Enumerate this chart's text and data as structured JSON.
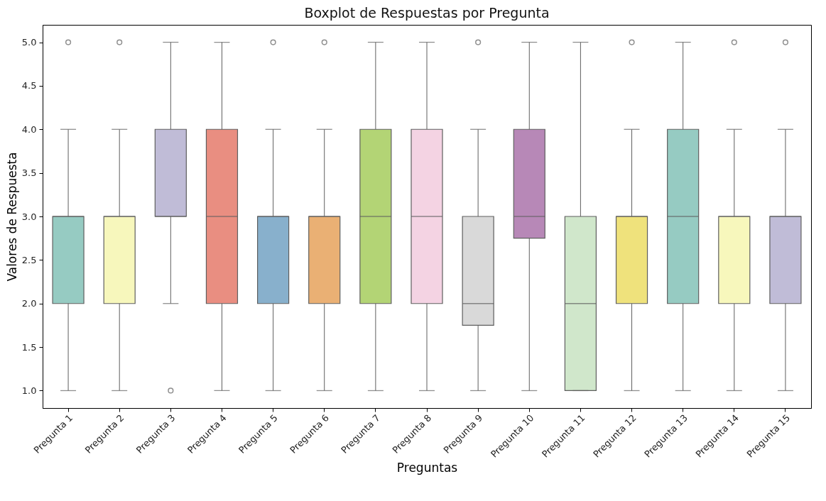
{
  "chart_data": {
    "type": "box",
    "title": "Boxplot de Respuestas por Pregunta",
    "xlabel": "Preguntas",
    "ylabel": "Valores de Respuesta",
    "categories": [
      "Pregunta 1",
      "Pregunta 2",
      "Pregunta 3",
      "Pregunta 4",
      "Pregunta 5",
      "Pregunta 6",
      "Pregunta 7",
      "Pregunta 8",
      "Pregunta 9",
      "Pregunta 10",
      "Pregunta 11",
      "Pregunta 12",
      "Pregunta 13",
      "Pregunta 14",
      "Pregunta 15"
    ],
    "colors": [
      "#96cbc2",
      "#f7f7bc",
      "#c0bcd7",
      "#e98e81",
      "#88b0cc",
      "#eab074",
      "#b3d475",
      "#f4d3e3",
      "#d9d9d9",
      "#b788b7",
      "#d0e7cb",
      "#efe27c",
      "#96cbc2",
      "#f7f7bc",
      "#c0bcd7"
    ],
    "boxes": [
      {
        "low": 1,
        "q1": 2,
        "median": 3,
        "q3": 3,
        "high": 4,
        "outliers": [
          5
        ]
      },
      {
        "low": 1,
        "q1": 2,
        "median": 3,
        "q3": 3,
        "high": 4,
        "outliers": [
          5
        ]
      },
      {
        "low": 2,
        "q1": 3,
        "median": 3,
        "q3": 4,
        "high": 5,
        "outliers": [
          1
        ]
      },
      {
        "low": 1,
        "q1": 2,
        "median": 3,
        "q3": 4,
        "high": 5
      },
      {
        "low": 1,
        "q1": 2,
        "median": 3,
        "q3": 3,
        "high": 4,
        "outliers": [
          5
        ]
      },
      {
        "low": 1,
        "q1": 2,
        "median": 3,
        "q3": 3,
        "high": 4,
        "outliers": [
          5
        ]
      },
      {
        "low": 1,
        "q1": 2,
        "median": 3,
        "q3": 4,
        "high": 5
      },
      {
        "low": 1,
        "q1": 2,
        "median": 3,
        "q3": 4,
        "high": 5
      },
      {
        "low": 1,
        "q1": 1.75,
        "median": 2,
        "q3": 3,
        "high": 4,
        "outliers": [
          5
        ]
      },
      {
        "low": 1,
        "q1": 2.75,
        "median": 3,
        "q3": 4,
        "high": 5
      },
      {
        "low": 1,
        "q1": 1,
        "median": 2,
        "q3": 3,
        "high": 5
      },
      {
        "low": 1,
        "q1": 2,
        "median": 3,
        "q3": 3,
        "high": 4,
        "outliers": [
          5
        ]
      },
      {
        "low": 1,
        "q1": 2,
        "median": 3,
        "q3": 4,
        "high": 5
      },
      {
        "low": 1,
        "q1": 2,
        "median": 3,
        "q3": 3,
        "high": 4,
        "outliers": [
          5
        ]
      },
      {
        "low": 1,
        "q1": 2,
        "median": 3,
        "q3": 3,
        "high": 4,
        "outliers": [
          5
        ]
      }
    ],
    "ylim": [
      0.8,
      5.2
    ],
    "yticks": [
      {
        "value": 1,
        "label": "1.0"
      },
      1.5,
      {
        "value": 2,
        "label": "2.0"
      },
      2.5,
      {
        "value": 3,
        "label": "3.0"
      },
      3.5,
      {
        "value": 4,
        "label": "4.0"
      },
      4.5,
      {
        "value": 5,
        "label": "5.0"
      }
    ],
    "grid": false
  }
}
